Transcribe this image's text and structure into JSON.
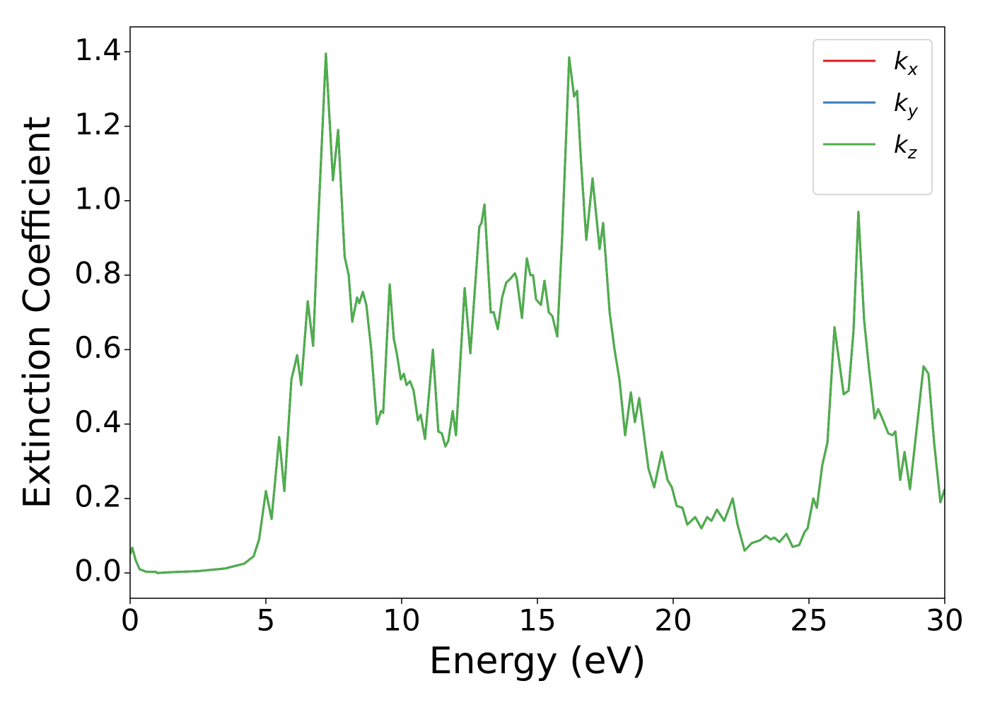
{
  "chart_data": {
    "type": "line",
    "x_label": "Energy (eV)",
    "y_label": "Extinction Coefficient",
    "x": [
      0,
      0.08,
      0.2,
      0.35,
      0.6,
      0.95,
      1.0,
      1.5,
      2.5,
      3.5,
      4.2,
      4.55,
      4.75,
      5.0,
      5.21,
      5.49,
      5.68,
      5.94,
      6.04,
      6.15,
      6.3,
      6.54,
      6.74,
      6.9,
      7.21,
      7.47,
      7.66,
      7.9,
      8.05,
      8.18,
      8.36,
      8.44,
      8.57,
      8.7,
      8.88,
      9.09,
      9.24,
      9.32,
      9.56,
      9.71,
      9.82,
      9.97,
      10.08,
      10.18,
      10.31,
      10.44,
      10.6,
      10.7,
      10.86,
      11.15,
      11.35,
      11.48,
      11.61,
      11.72,
      11.88,
      12.0,
      12.32,
      12.53,
      12.86,
      12.94,
      13.05,
      13.28,
      13.39,
      13.54,
      13.7,
      13.85,
      14.0,
      14.17,
      14.24,
      14.43,
      14.61,
      14.74,
      14.84,
      14.95,
      15.13,
      15.26,
      15.42,
      15.55,
      15.73,
      15.91,
      16.17,
      16.35,
      16.46,
      16.61,
      16.8,
      17.03,
      17.29,
      17.42,
      17.66,
      17.84,
      18.02,
      18.23,
      18.44,
      18.59,
      18.75,
      18.91,
      19.09,
      19.3,
      19.58,
      19.79,
      19.95,
      20.13,
      20.34,
      20.52,
      20.81,
      21.04,
      21.25,
      21.41,
      21.61,
      21.88,
      22.19,
      22.37,
      22.63,
      22.89,
      23.2,
      23.41,
      23.59,
      23.72,
      23.91,
      24.17,
      24.4,
      24.64,
      24.84,
      24.95,
      25.16,
      25.29,
      25.49,
      25.68,
      25.94,
      26.09,
      26.28,
      26.46,
      26.64,
      26.82,
      27.03,
      27.21,
      27.42,
      27.55,
      27.73,
      27.92,
      28.07,
      28.18,
      28.36,
      28.52,
      28.72,
      28.91,
      29.22,
      29.4,
      29.61,
      29.84,
      30.0
    ],
    "series": [
      {
        "name": "kx",
        "color": "#e41a1c",
        "values": [
          0.05,
          0.068,
          0.035,
          0.01,
          0.003,
          0.003,
          0.0,
          0.002,
          0.005,
          0.012,
          0.025,
          0.045,
          0.09,
          0.22,
          0.145,
          0.365,
          0.22,
          0.52,
          0.55,
          0.585,
          0.505,
          0.73,
          0.61,
          0.9,
          1.395,
          1.055,
          1.19,
          0.85,
          0.8,
          0.675,
          0.74,
          0.725,
          0.755,
          0.72,
          0.6,
          0.4,
          0.435,
          0.43,
          0.775,
          0.63,
          0.59,
          0.52,
          0.535,
          0.505,
          0.515,
          0.49,
          0.41,
          0.425,
          0.36,
          0.6,
          0.38,
          0.375,
          0.34,
          0.355,
          0.435,
          0.37,
          0.765,
          0.59,
          0.93,
          0.94,
          0.99,
          0.7,
          0.7,
          0.655,
          0.74,
          0.78,
          0.79,
          0.805,
          0.79,
          0.685,
          0.845,
          0.8,
          0.8,
          0.735,
          0.72,
          0.785,
          0.7,
          0.69,
          0.635,
          0.9,
          1.385,
          1.28,
          1.295,
          1.1,
          0.895,
          1.06,
          0.87,
          0.94,
          0.7,
          0.6,
          0.52,
          0.37,
          0.485,
          0.405,
          0.47,
          0.38,
          0.28,
          0.23,
          0.325,
          0.25,
          0.23,
          0.18,
          0.175,
          0.13,
          0.15,
          0.12,
          0.15,
          0.14,
          0.17,
          0.14,
          0.2,
          0.13,
          0.06,
          0.08,
          0.088,
          0.1,
          0.09,
          0.095,
          0.083,
          0.105,
          0.07,
          0.075,
          0.11,
          0.12,
          0.2,
          0.175,
          0.29,
          0.35,
          0.66,
          0.58,
          0.48,
          0.49,
          0.65,
          0.97,
          0.68,
          0.55,
          0.415,
          0.44,
          0.41,
          0.375,
          0.37,
          0.38,
          0.25,
          0.325,
          0.225,
          0.35,
          0.555,
          0.535,
          0.35,
          0.19,
          0.225
        ]
      },
      {
        "name": "ky",
        "color": "#377eb8",
        "values": [
          0.05,
          0.068,
          0.035,
          0.01,
          0.003,
          0.003,
          0.0,
          0.002,
          0.005,
          0.012,
          0.025,
          0.045,
          0.09,
          0.22,
          0.145,
          0.365,
          0.22,
          0.52,
          0.55,
          0.585,
          0.505,
          0.73,
          0.61,
          0.9,
          1.395,
          1.055,
          1.19,
          0.85,
          0.8,
          0.675,
          0.74,
          0.725,
          0.755,
          0.72,
          0.6,
          0.4,
          0.435,
          0.43,
          0.775,
          0.63,
          0.59,
          0.52,
          0.535,
          0.505,
          0.515,
          0.49,
          0.41,
          0.425,
          0.36,
          0.6,
          0.38,
          0.375,
          0.34,
          0.355,
          0.435,
          0.37,
          0.765,
          0.59,
          0.93,
          0.94,
          0.99,
          0.7,
          0.7,
          0.655,
          0.74,
          0.78,
          0.79,
          0.805,
          0.79,
          0.685,
          0.845,
          0.8,
          0.8,
          0.735,
          0.72,
          0.785,
          0.7,
          0.69,
          0.635,
          0.9,
          1.385,
          1.28,
          1.295,
          1.1,
          0.895,
          1.06,
          0.87,
          0.94,
          0.7,
          0.6,
          0.52,
          0.37,
          0.485,
          0.405,
          0.47,
          0.38,
          0.28,
          0.23,
          0.325,
          0.25,
          0.23,
          0.18,
          0.175,
          0.13,
          0.15,
          0.12,
          0.15,
          0.14,
          0.17,
          0.14,
          0.2,
          0.13,
          0.06,
          0.08,
          0.088,
          0.1,
          0.09,
          0.095,
          0.083,
          0.105,
          0.07,
          0.075,
          0.11,
          0.12,
          0.2,
          0.175,
          0.29,
          0.35,
          0.66,
          0.58,
          0.48,
          0.49,
          0.65,
          0.97,
          0.68,
          0.55,
          0.415,
          0.44,
          0.41,
          0.375,
          0.37,
          0.38,
          0.25,
          0.325,
          0.225,
          0.35,
          0.555,
          0.535,
          0.35,
          0.19,
          0.225
        ]
      },
      {
        "name": "kz",
        "color": "#4daf4a",
        "values": [
          0.05,
          0.068,
          0.035,
          0.01,
          0.003,
          0.003,
          0.0,
          0.002,
          0.005,
          0.012,
          0.025,
          0.045,
          0.09,
          0.22,
          0.145,
          0.365,
          0.22,
          0.52,
          0.55,
          0.585,
          0.505,
          0.73,
          0.61,
          0.9,
          1.395,
          1.055,
          1.19,
          0.85,
          0.8,
          0.675,
          0.74,
          0.725,
          0.755,
          0.72,
          0.6,
          0.4,
          0.435,
          0.43,
          0.775,
          0.63,
          0.59,
          0.52,
          0.535,
          0.505,
          0.515,
          0.49,
          0.41,
          0.425,
          0.36,
          0.6,
          0.38,
          0.375,
          0.34,
          0.355,
          0.435,
          0.37,
          0.765,
          0.59,
          0.93,
          0.94,
          0.99,
          0.7,
          0.7,
          0.655,
          0.74,
          0.78,
          0.79,
          0.805,
          0.79,
          0.685,
          0.845,
          0.8,
          0.8,
          0.735,
          0.72,
          0.785,
          0.7,
          0.69,
          0.635,
          0.9,
          1.385,
          1.28,
          1.295,
          1.1,
          0.895,
          1.06,
          0.87,
          0.94,
          0.7,
          0.6,
          0.52,
          0.37,
          0.485,
          0.405,
          0.47,
          0.38,
          0.28,
          0.23,
          0.325,
          0.25,
          0.23,
          0.18,
          0.175,
          0.13,
          0.15,
          0.12,
          0.15,
          0.14,
          0.17,
          0.14,
          0.2,
          0.13,
          0.06,
          0.08,
          0.088,
          0.1,
          0.09,
          0.095,
          0.083,
          0.105,
          0.07,
          0.075,
          0.11,
          0.12,
          0.2,
          0.175,
          0.29,
          0.35,
          0.66,
          0.58,
          0.48,
          0.49,
          0.65,
          0.97,
          0.68,
          0.55,
          0.415,
          0.44,
          0.41,
          0.375,
          0.37,
          0.38,
          0.25,
          0.325,
          0.225,
          0.35,
          0.555,
          0.535,
          0.35,
          0.19,
          0.225
        ]
      }
    ],
    "xlim": [
      0,
      30
    ],
    "xticks": [
      0,
      5,
      10,
      15,
      20,
      25,
      30
    ],
    "ylim": [
      -0.068,
      1.467
    ],
    "yticks": [
      {
        "value": 0.0,
        "label": "0.0"
      },
      0.2,
      0.4,
      0.6,
      0.8,
      {
        "value": 1.0,
        "label": "1.0"
      },
      1.2,
      1.4
    ],
    "legend": "upper right",
    "grid": false
  }
}
